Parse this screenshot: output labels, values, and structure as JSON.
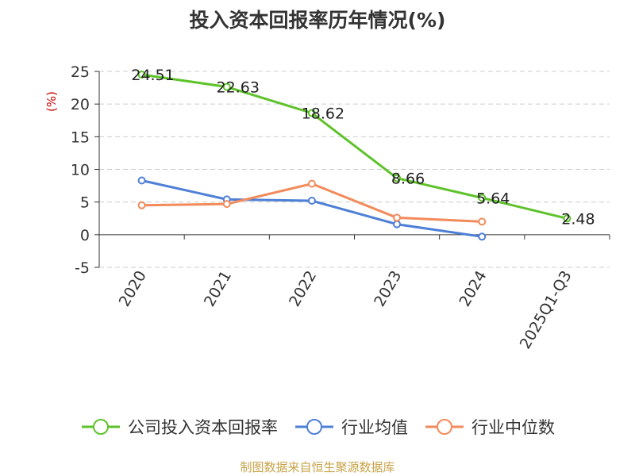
{
  "title": "投入资本回报率历年情况(%)",
  "source": "制图数据来自恒生聚源数据库",
  "chart_data": {
    "type": "line",
    "title": "投入资本回报率历年情况(%)",
    "ylabel": "(%)",
    "xlabel": "",
    "categories": [
      "2020",
      "2021",
      "2022",
      "2023",
      "2024",
      "2025Q1-Q3"
    ],
    "ylim": [
      -5,
      25
    ],
    "yticks": [
      25,
      20,
      15,
      10,
      5,
      0,
      -5
    ],
    "grid": true,
    "legend_position": "bottom",
    "series": [
      {
        "name": "公司投入资本回报率",
        "color": "#5ec22a",
        "values": [
          24.51,
          22.63,
          18.62,
          8.66,
          5.64,
          2.48
        ],
        "labels": [
          "24.51",
          "22.63",
          "18.62",
          "8.66",
          "5.64",
          "2.48"
        ]
      },
      {
        "name": "行业均值",
        "color": "#4e7fd6",
        "values": [
          8.3,
          5.4,
          5.2,
          1.6,
          -0.3,
          null
        ]
      },
      {
        "name": "行业中位数",
        "color": "#f28a5a",
        "values": [
          4.5,
          4.7,
          7.8,
          2.6,
          2.0,
          null
        ]
      }
    ]
  }
}
